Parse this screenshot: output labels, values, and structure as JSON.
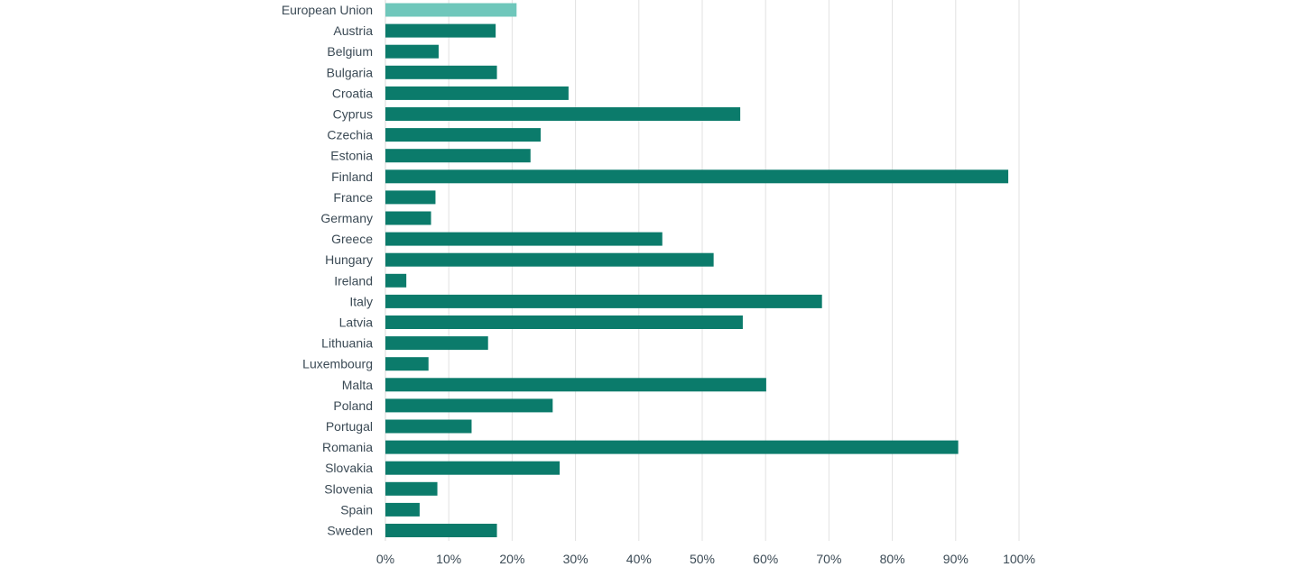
{
  "chart_data": {
    "type": "bar",
    "orientation": "horizontal",
    "categories": [
      "European Union",
      "Austria",
      "Belgium",
      "Bulgaria",
      "Croatia",
      "Cyprus",
      "Czechia",
      "Estonia",
      "Finland",
      "France",
      "Germany",
      "Greece",
      "Hungary",
      "Ireland",
      "Italy",
      "Latvia",
      "Lithuania",
      "Luxembourg",
      "Malta",
      "Poland",
      "Portugal",
      "Romania",
      "Slovakia",
      "Slovenia",
      "Spain",
      "Sweden"
    ],
    "values": [
      20.7,
      17.4,
      8.4,
      17.6,
      28.9,
      56.0,
      24.5,
      22.9,
      98.3,
      7.9,
      7.2,
      43.7,
      51.8,
      3.3,
      68.9,
      56.4,
      16.2,
      6.8,
      60.1,
      26.4,
      13.6,
      90.4,
      27.5,
      8.2,
      5.4,
      17.6
    ],
    "xlim": [
      0,
      100
    ],
    "x_ticks": [
      0,
      10,
      20,
      30,
      40,
      50,
      60,
      70,
      80,
      90,
      100
    ],
    "x_tick_labels": [
      "0%",
      "10%",
      "20%",
      "30%",
      "40%",
      "50%",
      "60%",
      "70%",
      "80%",
      "90%",
      "100%"
    ],
    "grid": "vertical",
    "colors": {
      "highlight": "#6fc7bb",
      "bar": "#0b7b6b",
      "grid": "#e2e2e2",
      "text": "#3b4a55"
    }
  }
}
